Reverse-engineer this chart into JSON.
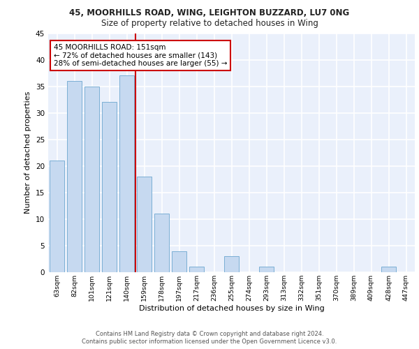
{
  "title1": "45, MOORHILLS ROAD, WING, LEIGHTON BUZZARD, LU7 0NG",
  "title2": "Size of property relative to detached houses in Wing",
  "xlabel": "Distribution of detached houses by size in Wing",
  "ylabel": "Number of detached properties",
  "categories": [
    "63sqm",
    "82sqm",
    "101sqm",
    "121sqm",
    "140sqm",
    "159sqm",
    "178sqm",
    "197sqm",
    "217sqm",
    "236sqm",
    "255sqm",
    "274sqm",
    "293sqm",
    "313sqm",
    "332sqm",
    "351sqm",
    "370sqm",
    "389sqm",
    "409sqm",
    "428sqm",
    "447sqm"
  ],
  "values": [
    21,
    36,
    35,
    32,
    37,
    18,
    11,
    4,
    1,
    0,
    3,
    0,
    1,
    0,
    0,
    0,
    0,
    0,
    0,
    1,
    0
  ],
  "bar_color": "#c6d9f0",
  "bar_edge_color": "#7bafd4",
  "vline_x": 4.5,
  "vline_color": "#cc0000",
  "annotation_lines": [
    "45 MOORHILLS ROAD: 151sqm",
    "← 72% of detached houses are smaller (143)",
    "28% of semi-detached houses are larger (55) →"
  ],
  "annotation_box_color": "#cc0000",
  "bg_color": "#eaf0fb",
  "grid_color": "#ffffff",
  "ylim": [
    0,
    45
  ],
  "yticks": [
    0,
    5,
    10,
    15,
    20,
    25,
    30,
    35,
    40,
    45
  ],
  "footer1": "Contains HM Land Registry data © Crown copyright and database right 2024.",
  "footer2": "Contains public sector information licensed under the Open Government Licence v3.0."
}
